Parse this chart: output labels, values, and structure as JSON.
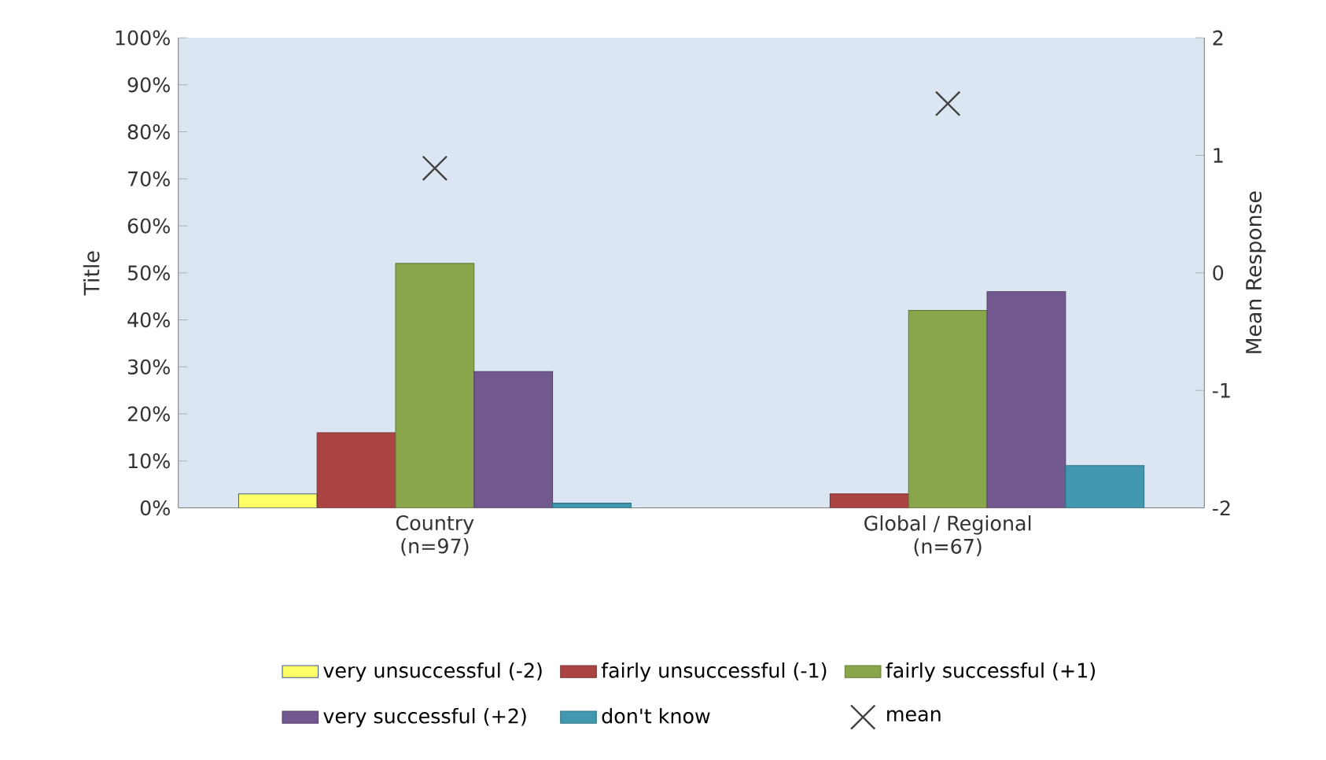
{
  "chart_data": {
    "type": "bar",
    "ylabel": "Title",
    "y2label": "Mean Response",
    "categories": [
      "Country (n=97)",
      "Global / Regional (n=67)"
    ],
    "series": [
      {
        "name": "very unsuccessful (-2)",
        "color": "#ffff66",
        "values": [
          3,
          null
        ]
      },
      {
        "name": "fairly unsuccessful (-1)",
        "color": "#aa4442",
        "values": [
          16,
          3
        ]
      },
      {
        "name": "fairly successful (+1)",
        "color": "#8aa64b",
        "values": [
          52,
          42
        ]
      },
      {
        "name": "very successful (+2)",
        "color": "#71588f",
        "values": [
          29,
          46
        ]
      },
      {
        "name": "don't know",
        "color": "#4198af",
        "values": [
          1,
          9
        ]
      },
      {
        "name": "mean",
        "type": "scatter",
        "axis": "y2",
        "marker": "cross",
        "color": "#404040",
        "values": [
          0.89,
          1.44
        ]
      }
    ],
    "ylim": [
      0,
      100
    ],
    "yticks": [
      {
        "value": 0,
        "label": "0%"
      },
      {
        "value": 10,
        "label": "10%"
      },
      {
        "value": 20,
        "label": "20%"
      },
      {
        "value": 30,
        "label": "30%"
      },
      {
        "value": 40,
        "label": "40%"
      },
      {
        "value": 50,
        "label": "50%"
      },
      {
        "value": 60,
        "label": "60%"
      },
      {
        "value": 70,
        "label": "70%"
      },
      {
        "value": 80,
        "label": "80%"
      },
      {
        "value": 90,
        "label": "90%"
      },
      {
        "value": 100,
        "label": "100%"
      }
    ],
    "y2lim": [
      -2,
      2
    ],
    "y2ticks": [
      -2,
      -1,
      0,
      1,
      2
    ],
    "legend": "bottom",
    "grid": false
  }
}
